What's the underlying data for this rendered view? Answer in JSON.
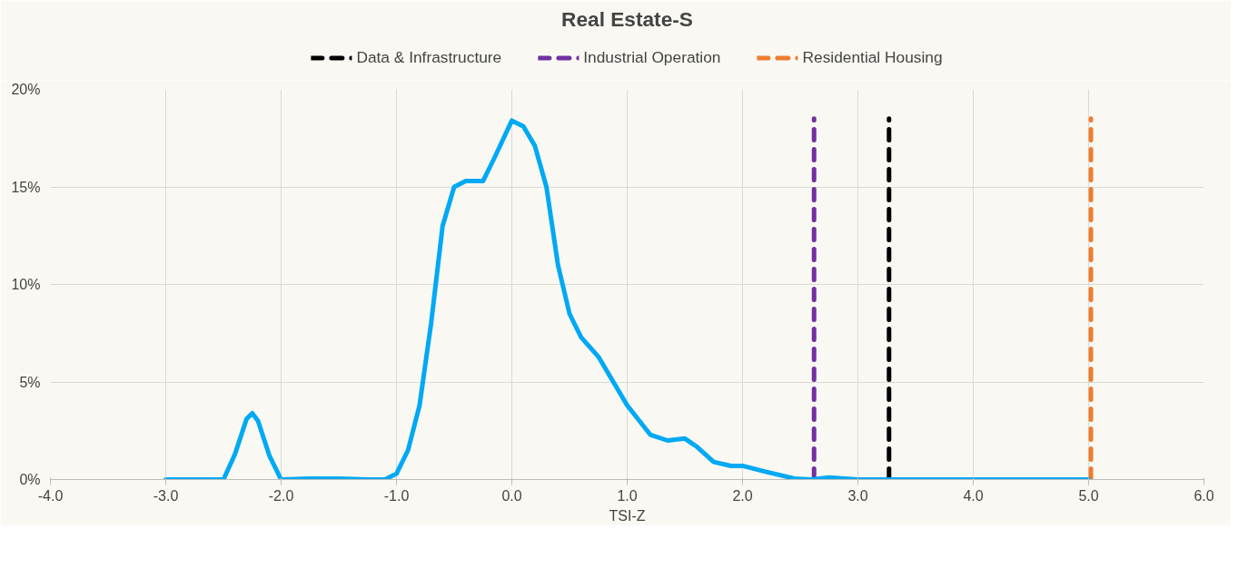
{
  "chart_data": {
    "type": "line",
    "title": "Real Estate-S",
    "xlabel": "TSI-Z",
    "xlim": [
      -4,
      6
    ],
    "xticks": [
      {
        "value": -4,
        "label": "-4.0"
      },
      {
        "value": -3,
        "label": "-3.0"
      },
      {
        "value": -2,
        "label": "-2.0"
      },
      {
        "value": -1,
        "label": "-1.0"
      },
      {
        "value": 0,
        "label": "0.0"
      },
      {
        "value": 1,
        "label": "1.0"
      },
      {
        "value": 2,
        "label": "2.0"
      },
      {
        "value": 3,
        "label": "3.0"
      },
      {
        "value": 4,
        "label": "4.0"
      },
      {
        "value": 5,
        "label": "5.0"
      },
      {
        "value": 6,
        "label": "6.0"
      }
    ],
    "ylim": [
      0,
      20
    ],
    "yticks": [
      {
        "value": 0,
        "label": "0%"
      },
      {
        "value": 5,
        "label": "5%"
      },
      {
        "value": 10,
        "label": "10%"
      },
      {
        "value": 15,
        "label": "15%"
      },
      {
        "value": 20,
        "label": "20%"
      }
    ],
    "grid": true,
    "legend": "top",
    "marker": "none",
    "series": [
      {
        "name": "Data & Infrastructure",
        "color": "#000000",
        "line_style": "dashed",
        "x": [
          3.27,
          3.27
        ],
        "values": [
          0,
          18.5
        ]
      },
      {
        "name": "Industrial Operation",
        "color": "#7030a0",
        "line_style": "dashed",
        "x": [
          2.62,
          2.62
        ],
        "values": [
          0,
          18.5
        ]
      },
      {
        "name": "Residential Housing",
        "color": "#ed7d31",
        "line_style": "dashed",
        "x": [
          5.02,
          5.02
        ],
        "values": [
          0,
          18.5
        ]
      },
      {
        "color": "#00a9f4",
        "line_style": "solid",
        "x": [
          -3.0,
          -2.75,
          -2.5,
          -2.4,
          -2.3,
          -2.25,
          -2.2,
          -2.1,
          -2.0,
          -1.75,
          -1.5,
          -1.25,
          -1.1,
          -1.0,
          -0.9,
          -0.8,
          -0.7,
          -0.6,
          -0.5,
          -0.4,
          -0.25,
          -0.15,
          0.0,
          0.1,
          0.2,
          0.3,
          0.4,
          0.5,
          0.6,
          0.75,
          0.9,
          1.0,
          1.2,
          1.35,
          1.5,
          1.6,
          1.75,
          1.9,
          2.0,
          2.2,
          2.45,
          2.6,
          2.75,
          3.0,
          4.0,
          5.0
        ],
        "values": [
          0,
          0,
          0,
          1.3,
          3.1,
          3.4,
          3.0,
          1.2,
          0,
          0.05,
          0.05,
          0,
          0,
          0.3,
          1.5,
          3.8,
          8,
          13,
          15,
          15.3,
          15.3,
          16.5,
          18.4,
          18.1,
          17.1,
          15,
          11,
          8.5,
          7.3,
          6.3,
          4.8,
          3.8,
          2.3,
          2.0,
          2.1,
          1.7,
          0.9,
          0.7,
          0.7,
          0.4,
          0.05,
          0,
          0.1,
          0,
          0,
          0
        ]
      }
    ]
  }
}
